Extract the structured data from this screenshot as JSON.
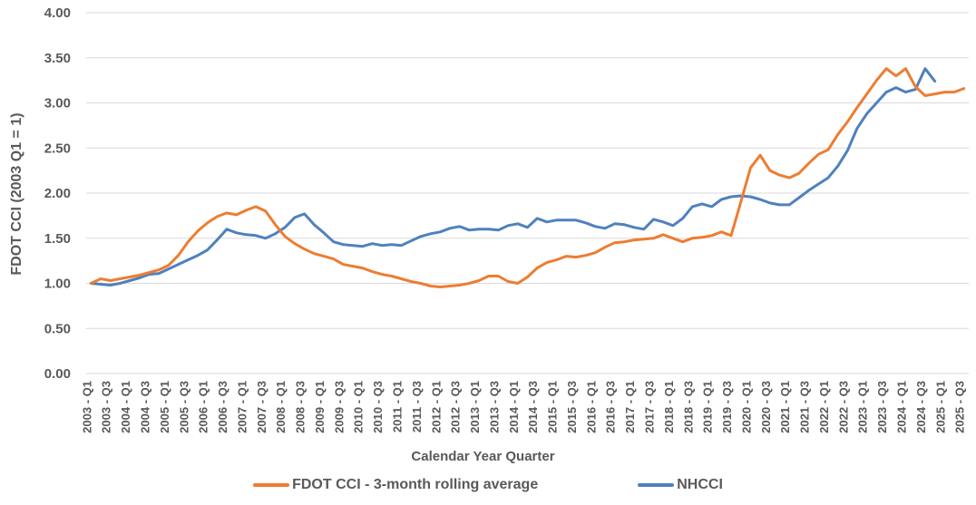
{
  "chart_data": {
    "type": "line",
    "title": "",
    "xlabel": "Calendar Year Quarter",
    "ylabel": "FDOT CCI (2003 Q1 = 1)",
    "ylim": [
      0.0,
      4.0
    ],
    "ytick_step": 0.5,
    "ytick_labels": [
      "0.00",
      "0.50",
      "1.00",
      "1.50",
      "2.00",
      "2.50",
      "3.00",
      "3.50",
      "4.00"
    ],
    "grid": true,
    "legend_position": "bottom-center",
    "x_unit": "quarter",
    "x_first": "2003 - Q1",
    "x_last": "2025 - Q3",
    "n_points": 91,
    "xticks_every_n_points": 2,
    "xtick_labels": [
      "2003 - Q1",
      "2003 - Q3",
      "2004 - Q1",
      "2004 - Q3",
      "2005 - Q1",
      "2005 - Q3",
      "2006 - Q1",
      "2006 - Q3",
      "2007 - Q1",
      "2007 - Q3",
      "2008 - Q1",
      "2008 - Q3",
      "2009 - Q1",
      "2009 - Q3",
      "2010 - Q1",
      "2010 - Q3",
      "2011 - Q1",
      "2011 - Q3",
      "2012 - Q1",
      "2012 - Q3",
      "2013 - Q1",
      "2013 - Q3",
      "2014 - Q1",
      "2014 - Q3",
      "2015 - Q1",
      "2015 - Q3",
      "2016 - Q1",
      "2016 - Q3",
      "2017 - Q1",
      "2017 - Q3",
      "2018 - Q1",
      "2018 - Q3",
      "2019 - Q1",
      "2019 - Q3",
      "2020 - Q1",
      "2020 - Q3",
      "2021 - Q1",
      "2021 - Q3",
      "2022 - Q1",
      "2022 - Q3",
      "2023 - Q1",
      "2023 - Q3",
      "2024 - Q1",
      "2024 - Q3",
      "2025 - Q1",
      "2025 - Q3"
    ],
    "series": [
      {
        "name": "FDOT CCI - 3-month rolling average",
        "color": "#ED7D31",
        "values": [
          1.0,
          1.05,
          1.03,
          1.05,
          1.07,
          1.09,
          1.12,
          1.15,
          1.2,
          1.31,
          1.46,
          1.58,
          1.67,
          1.74,
          1.78,
          1.76,
          1.81,
          1.85,
          1.8,
          1.65,
          1.52,
          1.44,
          1.38,
          1.33,
          1.3,
          1.27,
          1.21,
          1.19,
          1.17,
          1.13,
          1.1,
          1.08,
          1.05,
          1.02,
          1.0,
          0.97,
          0.96,
          0.97,
          0.98,
          1.0,
          1.03,
          1.08,
          1.08,
          1.02,
          1.0,
          1.07,
          1.17,
          1.23,
          1.26,
          1.3,
          1.29,
          1.31,
          1.34,
          1.4,
          1.45,
          1.46,
          1.48,
          1.49,
          1.5,
          1.54,
          1.5,
          1.46,
          1.5,
          1.51,
          1.53,
          1.57,
          1.53,
          1.9,
          2.28,
          2.42,
          2.25,
          2.2,
          2.17,
          2.22,
          2.33,
          2.43,
          2.48,
          2.65,
          2.79,
          2.95,
          3.1,
          3.25,
          3.38,
          3.3,
          3.38,
          3.18,
          3.08,
          3.1,
          3.12,
          3.12,
          3.16
        ]
      },
      {
        "name": "NHCCI",
        "color": "#4F81BD",
        "values": [
          1.0,
          0.99,
          0.98,
          1.0,
          1.03,
          1.06,
          1.1,
          1.11,
          1.16,
          1.21,
          1.26,
          1.31,
          1.37,
          1.48,
          1.6,
          1.56,
          1.54,
          1.53,
          1.5,
          1.55,
          1.62,
          1.73,
          1.77,
          1.65,
          1.56,
          1.46,
          1.43,
          1.42,
          1.41,
          1.44,
          1.42,
          1.43,
          1.42,
          1.47,
          1.52,
          1.55,
          1.57,
          1.61,
          1.63,
          1.59,
          1.6,
          1.6,
          1.59,
          1.64,
          1.66,
          1.62,
          1.72,
          1.68,
          1.7,
          1.7,
          1.7,
          1.67,
          1.63,
          1.61,
          1.66,
          1.65,
          1.62,
          1.6,
          1.71,
          1.68,
          1.64,
          1.72,
          1.85,
          1.88,
          1.85,
          1.93,
          1.96,
          1.97,
          1.96,
          1.93,
          1.89,
          1.87,
          1.87,
          1.95,
          2.03,
          2.1,
          2.17,
          2.3,
          2.47,
          2.72,
          2.88,
          3.0,
          3.12,
          3.17,
          3.12,
          3.15,
          3.38,
          3.24
        ]
      }
    ],
    "style": {
      "text_color": "#595959",
      "gridline_color": "#D9D9D9",
      "line_width": 3
    }
  }
}
